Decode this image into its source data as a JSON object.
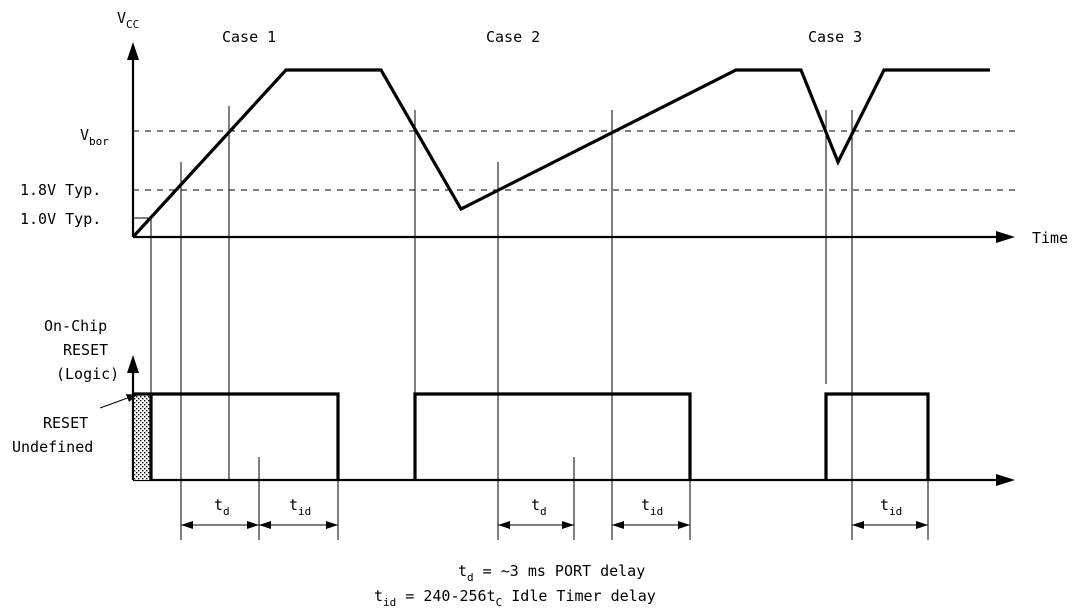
{
  "labels": {
    "vcc": "V",
    "vcc_sub": "CC",
    "vbor": "V",
    "vbor_sub": "bor",
    "typ_18": "1.8V Typ.",
    "typ_10": "1.0V Typ.",
    "time": "Time",
    "case1": "Case 1",
    "case2": "Case 2",
    "case3": "Case 3",
    "onchip_1": "On-Chip",
    "onchip_2": "RESET",
    "onchip_3": "(Logic)",
    "undef_1": "RESET",
    "undef_2": "Undefined",
    "t": "t",
    "sub_d": "d",
    "sub_id": "id"
  },
  "legend": {
    "td_lhs": "t",
    "td_sub": "d",
    "td_rhs": " = ~3 ms PORT delay",
    "tid_lhs": "t",
    "tid_sub": "id",
    "tid_mid": " = 240-256t",
    "tid_sub2": "C",
    "tid_rhs": " Idle Timer delay"
  }
}
